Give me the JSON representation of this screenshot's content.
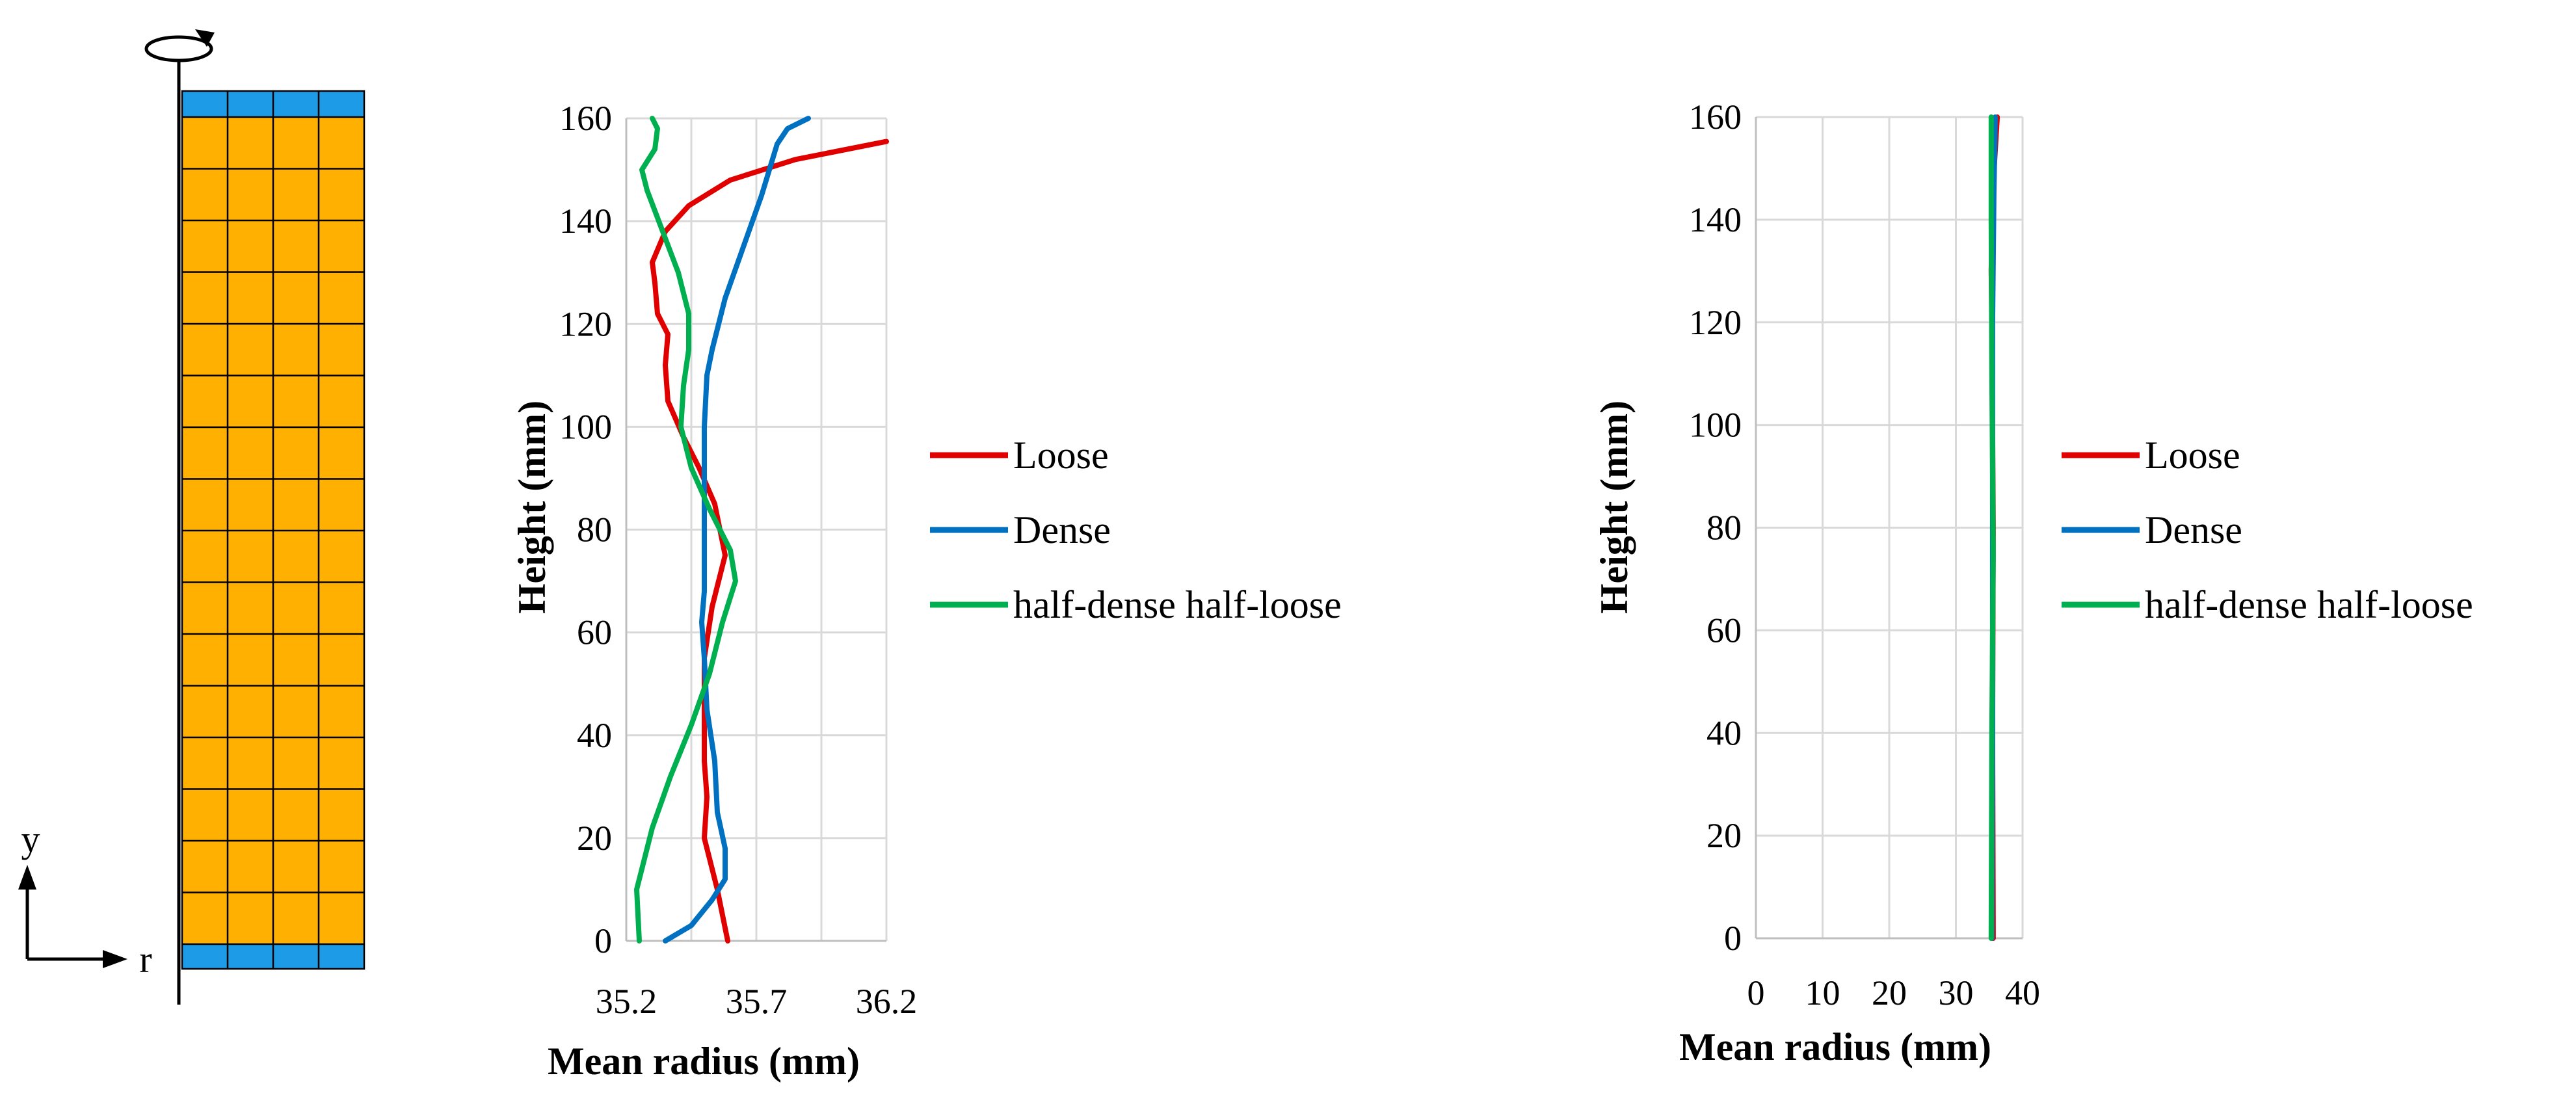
{
  "schematic": {
    "axis_r_label": "r",
    "axis_y_label": "y",
    "colors": {
      "soil": "#FFB000",
      "cap": "#1E9BE6",
      "grid": "#000000"
    }
  },
  "series_colors": {
    "Loose": "#E00000",
    "Dense": "#0070C0",
    "half-dense half-loose": "#00B050"
  },
  "chart_data": [
    {
      "type": "line",
      "title": "",
      "xlabel": "Mean radius (mm)",
      "ylabel": "Height (mm)",
      "xlim": [
        35.2,
        36.2
      ],
      "ylim": [
        0,
        160
      ],
      "xticks": [
        35.2,
        35.7,
        36.2
      ],
      "xtick_labels": [
        "35.2",
        "35.7",
        "36.2"
      ],
      "yticks": [
        0,
        20,
        40,
        60,
        80,
        100,
        120,
        140,
        160
      ],
      "ytick_labels": [
        "0",
        "20",
        "40",
        "60",
        "80",
        "100",
        "120",
        "140",
        "160"
      ],
      "x_minor_gridlines": [
        35.45,
        35.95
      ],
      "grid": true,
      "legend": "right",
      "series": [
        {
          "name": "Loose",
          "points": [
            [
              35.59,
              0
            ],
            [
              35.55,
              10
            ],
            [
              35.5,
              20
            ],
            [
              35.51,
              28
            ],
            [
              35.5,
              35
            ],
            [
              35.5,
              45
            ],
            [
              35.5,
              55
            ],
            [
              35.53,
              65
            ],
            [
              35.58,
              75
            ],
            [
              35.54,
              85
            ],
            [
              35.48,
              92
            ],
            [
              35.42,
              98
            ],
            [
              35.36,
              105
            ],
            [
              35.35,
              112
            ],
            [
              35.36,
              118
            ],
            [
              35.32,
              122
            ],
            [
              35.31,
              128
            ],
            [
              35.3,
              132
            ],
            [
              35.35,
              138
            ],
            [
              35.44,
              143
            ],
            [
              35.6,
              148
            ],
            [
              35.85,
              152
            ],
            [
              36.2,
              155.5
            ]
          ]
        },
        {
          "name": "Dense",
          "points": [
            [
              35.35,
              0
            ],
            [
              35.45,
              3
            ],
            [
              35.53,
              8
            ],
            [
              35.58,
              12
            ],
            [
              35.58,
              18
            ],
            [
              35.55,
              25
            ],
            [
              35.54,
              35
            ],
            [
              35.51,
              45
            ],
            [
              35.5,
              55
            ],
            [
              35.49,
              62
            ],
            [
              35.5,
              68
            ],
            [
              35.5,
              80
            ],
            [
              35.5,
              92
            ],
            [
              35.5,
              100
            ],
            [
              35.51,
              110
            ],
            [
              35.53,
              115
            ],
            [
              35.58,
              125
            ],
            [
              35.65,
              135
            ],
            [
              35.72,
              145
            ],
            [
              35.78,
              155
            ],
            [
              35.82,
              158
            ],
            [
              35.9,
              160
            ]
          ]
        },
        {
          "name": "half-dense half-loose",
          "points": [
            [
              35.25,
              0
            ],
            [
              35.24,
              10
            ],
            [
              35.3,
              22
            ],
            [
              35.37,
              32
            ],
            [
              35.45,
              42
            ],
            [
              35.52,
              52
            ],
            [
              35.57,
              62
            ],
            [
              35.62,
              70
            ],
            [
              35.6,
              76
            ],
            [
              35.52,
              84
            ],
            [
              35.45,
              92
            ],
            [
              35.41,
              100
            ],
            [
              35.42,
              108
            ],
            [
              35.44,
              115
            ],
            [
              35.44,
              122
            ],
            [
              35.4,
              130
            ],
            [
              35.34,
              138
            ],
            [
              35.28,
              146
            ],
            [
              35.26,
              150
            ],
            [
              35.31,
              154
            ],
            [
              35.32,
              158
            ],
            [
              35.3,
              160
            ]
          ]
        }
      ]
    },
    {
      "type": "line",
      "title": "",
      "xlabel": "Mean radius (mm)",
      "ylabel": "Height (mm)",
      "xlim": [
        0,
        40
      ],
      "ylim": [
        0,
        160
      ],
      "xticks": [
        0,
        10,
        20,
        30,
        40
      ],
      "xtick_labels": [
        "0",
        "10",
        "20",
        "30",
        "40"
      ],
      "yticks": [
        0,
        20,
        40,
        60,
        80,
        100,
        120,
        140,
        160
      ],
      "ytick_labels": [
        "0",
        "20",
        "40",
        "60",
        "80",
        "100",
        "120",
        "140",
        "160"
      ],
      "grid": true,
      "legend": "right",
      "series": [
        {
          "name": "Loose",
          "points": [
            [
              35.6,
              0
            ],
            [
              35.5,
              40
            ],
            [
              35.6,
              80
            ],
            [
              35.4,
              120
            ],
            [
              35.3,
              130
            ],
            [
              35.5,
              145
            ],
            [
              36.2,
              160
            ]
          ]
        },
        {
          "name": "Dense",
          "points": [
            [
              35.4,
              0
            ],
            [
              35.5,
              40
            ],
            [
              35.5,
              80
            ],
            [
              35.5,
              120
            ],
            [
              35.7,
              145
            ],
            [
              35.9,
              160
            ]
          ]
        },
        {
          "name": "half-dense half-loose",
          "points": [
            [
              35.3,
              0
            ],
            [
              35.4,
              40
            ],
            [
              35.6,
              75
            ],
            [
              35.4,
              110
            ],
            [
              35.3,
              140
            ],
            [
              35.3,
              160
            ]
          ]
        }
      ]
    }
  ]
}
